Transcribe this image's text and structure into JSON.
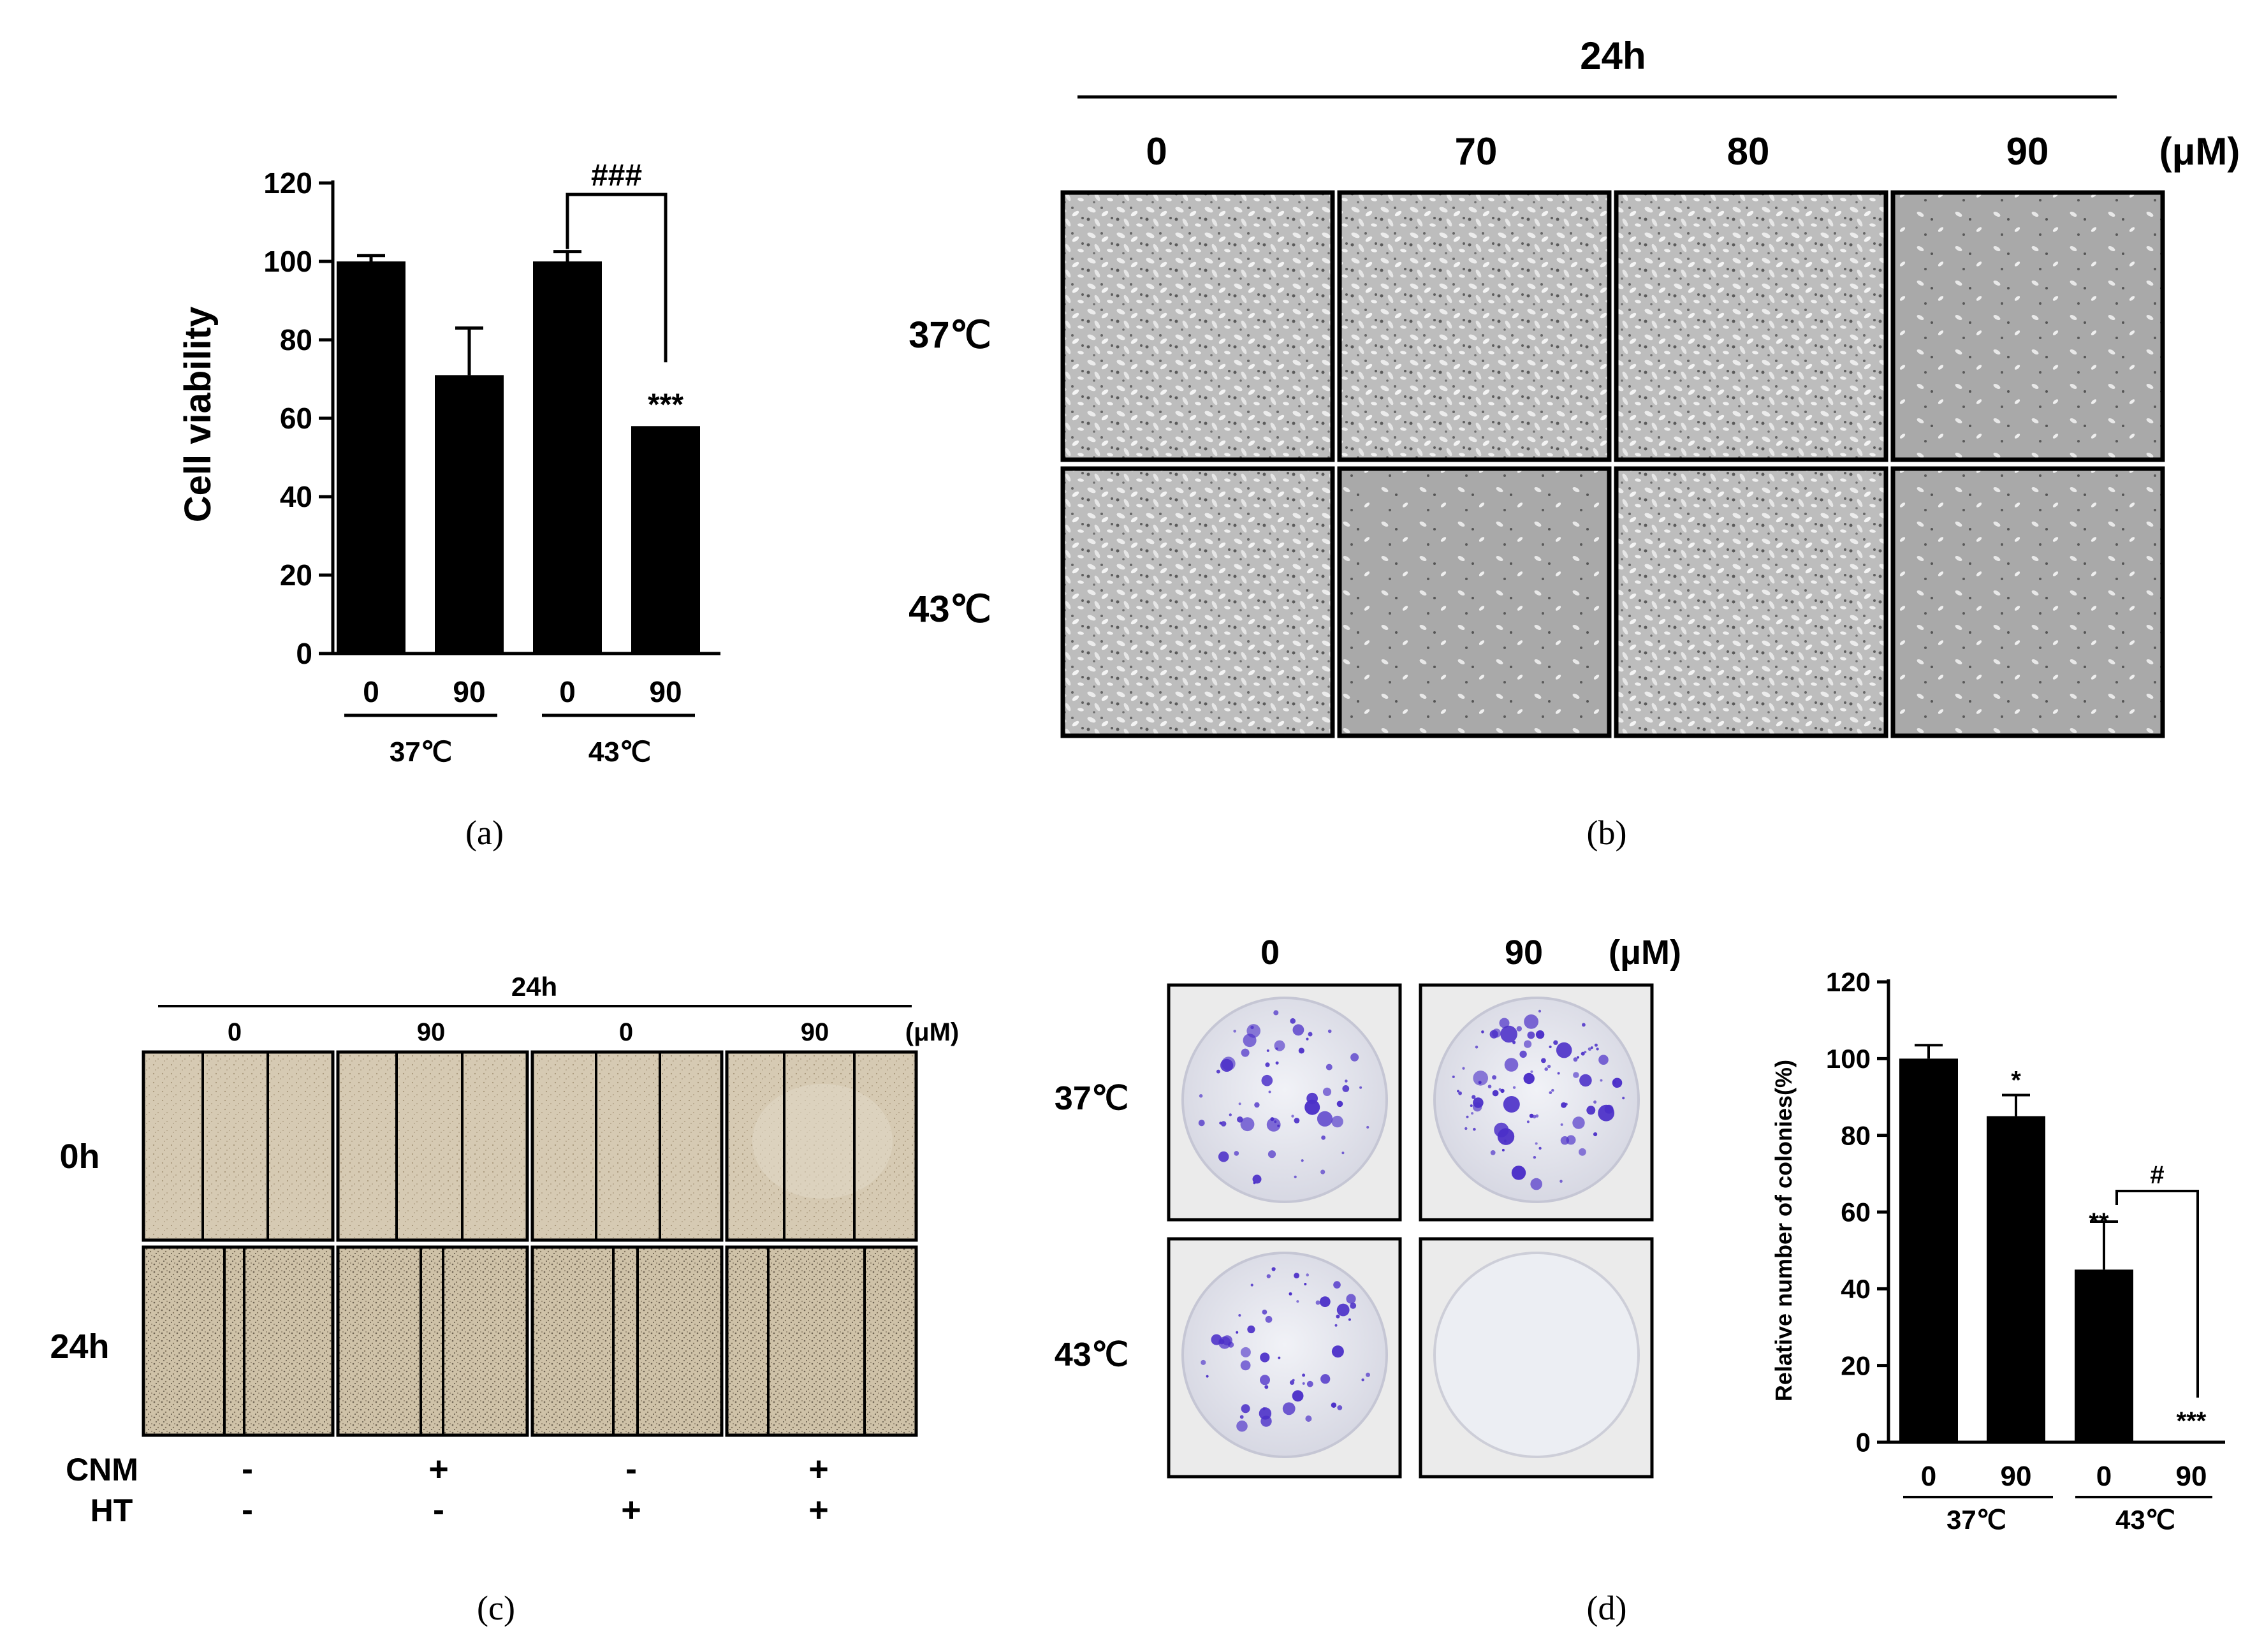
{
  "panel_a": {
    "caption": "(a)",
    "ylabel": "Cell viability",
    "yticks": [
      "0",
      "20",
      "40",
      "60",
      "80",
      "100",
      "120"
    ],
    "bar_labels": [
      "0",
      "90",
      "0",
      "90"
    ],
    "groups": [
      "37℃",
      "43℃"
    ],
    "sig_bracket": "###",
    "sig_bar": "***"
  },
  "panel_b": {
    "caption": "(b)",
    "time": "24h",
    "concentrations": [
      "0",
      "70",
      "80",
      "90"
    ],
    "unit": "(μM)",
    "rows": [
      "37℃",
      "43℃"
    ]
  },
  "panel_c": {
    "caption": "(c)",
    "time": "24h",
    "concentrations": [
      "0",
      "90",
      "0",
      "90"
    ],
    "unit": "(μM)",
    "rows": [
      "0h",
      "24h"
    ],
    "treatments": [
      {
        "name": "CNM",
        "values": [
          "-",
          "+",
          "-",
          "+"
        ]
      },
      {
        "name": "HT",
        "values": [
          "-",
          "-",
          "+",
          "+"
        ]
      }
    ]
  },
  "panel_d": {
    "caption": "(d)",
    "concentrations": [
      "0",
      "90"
    ],
    "unit": "(μM)",
    "rows": [
      "37℃",
      "43℃"
    ],
    "ylabel": "Relative number of colonies(%)",
    "yticks": [
      "0",
      "20",
      "40",
      "60",
      "80",
      "100",
      "120"
    ],
    "bar_labels": [
      "0",
      "90",
      "0",
      "90"
    ],
    "groups": [
      "37℃",
      "43℃"
    ],
    "sig_marks": [
      "*",
      "**",
      "***"
    ],
    "sig_bracket": "#"
  },
  "chart_data": [
    {
      "type": "bar",
      "categories": [
        "0",
        "90",
        "0",
        "90"
      ],
      "groups": [
        "37℃",
        "43℃"
      ],
      "values": [
        100,
        71,
        100,
        58
      ],
      "errors": [
        1.5,
        12,
        2.5,
        0
      ],
      "ylabel": "Cell viability",
      "ylim": [
        0,
        120
      ],
      "annotations": [
        {
          "bar": 3,
          "text": "***"
        },
        {
          "bracket": [
            2,
            3
          ],
          "text": "###"
        }
      ]
    },
    {
      "type": "bar",
      "categories": [
        "0",
        "90",
        "0",
        "90"
      ],
      "groups": [
        "37℃",
        "43℃"
      ],
      "values": [
        100,
        85,
        45,
        0
      ],
      "errors": [
        3.5,
        5.5,
        12.5,
        0
      ],
      "ylabel": "Relative number of colonies(%)",
      "ylim": [
        0,
        120
      ],
      "annotations": [
        {
          "bar": 1,
          "text": "*"
        },
        {
          "bar": 2,
          "text": "**"
        },
        {
          "bar": 3,
          "text": "***"
        },
        {
          "bracket": [
            2,
            3
          ],
          "text": "#"
        }
      ]
    }
  ],
  "colors": {
    "bar": "#000000",
    "micro_bg": "#c8c8c8",
    "scratch_bg": "#d8cdb7",
    "colony_dish": "#e8e9f0",
    "colony_spot": "#4b2fc8"
  }
}
